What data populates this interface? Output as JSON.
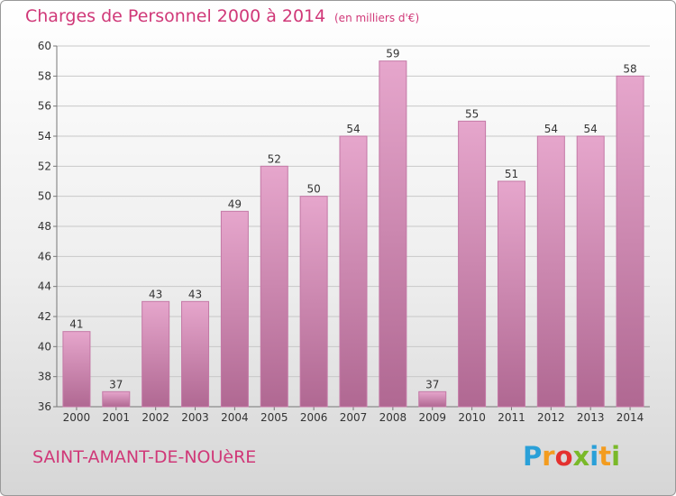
{
  "title": "Charges de Personnel 2000 à 2014",
  "subtitle": "(en milliers d'€)",
  "commune": "SAINT-AMANT-DE-NOUèRE",
  "logo": {
    "letters": [
      "P",
      "r",
      "o",
      "x",
      "i",
      "t",
      "i"
    ],
    "colors": [
      "#2aa0d8",
      "#f39c1f",
      "#e4312f",
      "#7ab929",
      "#2aa0d8",
      "#f39c1f",
      "#7ab929"
    ]
  },
  "colors": {
    "bar": "#d481b4",
    "bar_dark": "#b86a98",
    "text": "#333333",
    "accent": "#d03878"
  },
  "chart_data": {
    "type": "bar",
    "title": "Charges de Personnel 2000 à 2014",
    "categories": [
      "2000",
      "2001",
      "2002",
      "2003",
      "2004",
      "2005",
      "2006",
      "2007",
      "2008",
      "2009",
      "2010",
      "2011",
      "2012",
      "2013",
      "2014"
    ],
    "values": [
      41,
      37,
      43,
      43,
      49,
      52,
      50,
      54,
      59,
      37,
      55,
      51,
      54,
      54,
      58
    ],
    "ylim": [
      36,
      60
    ],
    "yticks": [
      36,
      38,
      40,
      42,
      44,
      46,
      48,
      50,
      52,
      54,
      56,
      58,
      60
    ],
    "grid": true,
    "data_labels": true
  }
}
